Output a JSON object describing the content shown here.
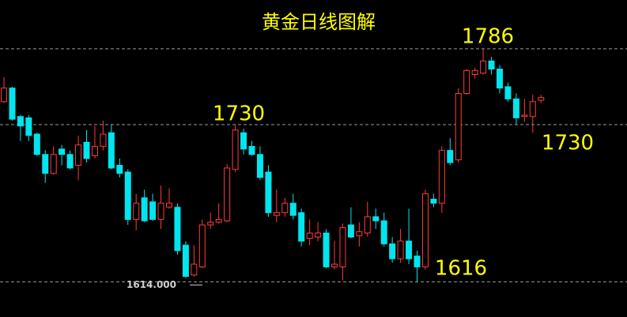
{
  "chart_data": {
    "type": "candlestick",
    "title": "黄金日线图解",
    "ylim": [
      1588,
      1822
    ],
    "up_color": "#ff3b3b",
    "down_color": "#00e5ee",
    "levels": [
      1786,
      1730,
      1614
    ],
    "price_label": {
      "value": 1614,
      "label": "1614.000"
    },
    "annotations": [
      1786,
      1730,
      1616,
      1730
    ],
    "open": [
      1747,
      1757,
      1736,
      1735,
      1723,
      1708,
      1694,
      1712,
      1708,
      1700,
      1717,
      1707,
      1714,
      1724,
      1700,
      1695,
      1660,
      1676,
      1673,
      1660,
      1669,
      1669,
      1641,
      1619,
      1625,
      1656,
      1658,
      1659,
      1697,
      1724,
      1714,
      1708,
      1695,
      1663,
      1665,
      1672,
      1665,
      1646,
      1647,
      1650,
      1625,
      1625,
      1656,
      1648,
      1650,
      1662,
      1659,
      1642,
      1631,
      1644,
      1633,
      1625,
      1675,
      1672,
      1711,
      1704,
      1753,
      1767,
      1768,
      1777,
      1771,
      1758,
      1749,
      1736,
      1736,
      1748
    ],
    "high": [
      1765,
      1758,
      1737,
      1737,
      1724,
      1711,
      1714,
      1715,
      1711,
      1722,
      1726,
      1729,
      1733,
      1730,
      1705,
      1697,
      1679,
      1682,
      1679,
      1685,
      1683,
      1672,
      1644,
      1641,
      1660,
      1665,
      1672,
      1701,
      1730,
      1727,
      1718,
      1714,
      1700,
      1682,
      1676,
      1679,
      1668,
      1660,
      1658,
      1653,
      1644,
      1657,
      1669,
      1658,
      1673,
      1668,
      1665,
      1647,
      1653,
      1668,
      1637,
      1682,
      1679,
      1714,
      1720,
      1757,
      1771,
      1772,
      1786,
      1780,
      1774,
      1761,
      1753,
      1749,
      1752,
      1752
    ],
    "low": [
      1746,
      1733,
      1718,
      1718,
      1707,
      1687,
      1693,
      1700,
      1697,
      1689,
      1702,
      1705,
      1711,
      1697,
      1691,
      1656,
      1652,
      1658,
      1659,
      1653,
      1668,
      1634,
      1617,
      1618,
      1624,
      1653,
      1657,
      1658,
      1695,
      1708,
      1707,
      1689,
      1662,
      1658,
      1662,
      1660,
      1640,
      1641,
      1644,
      1624,
      1623,
      1615,
      1646,
      1640,
      1647,
      1653,
      1640,
      1628,
      1628,
      1627,
      1614,
      1623,
      1669,
      1665,
      1700,
      1702,
      1752,
      1764,
      1767,
      1767,
      1753,
      1747,
      1730,
      1732,
      1724,
      1746
    ],
    "close": [
      1757,
      1734,
      1729,
      1722,
      1708,
      1694,
      1708,
      1708,
      1698,
      1715,
      1705,
      1714,
      1723,
      1698,
      1694,
      1660,
      1672,
      1659,
      1660,
      1672,
      1672,
      1637,
      1618,
      1627,
      1656,
      1658,
      1660,
      1698,
      1726,
      1712,
      1708,
      1691,
      1665,
      1665,
      1672,
      1663,
      1644,
      1650,
      1650,
      1625,
      1627,
      1654,
      1647,
      1651,
      1662,
      1659,
      1642,
      1631,
      1644,
      1631,
      1625,
      1679,
      1672,
      1711,
      1702,
      1753,
      1770,
      1770,
      1777,
      1771,
      1757,
      1749,
      1735,
      1737,
      1747,
      1750
    ]
  }
}
